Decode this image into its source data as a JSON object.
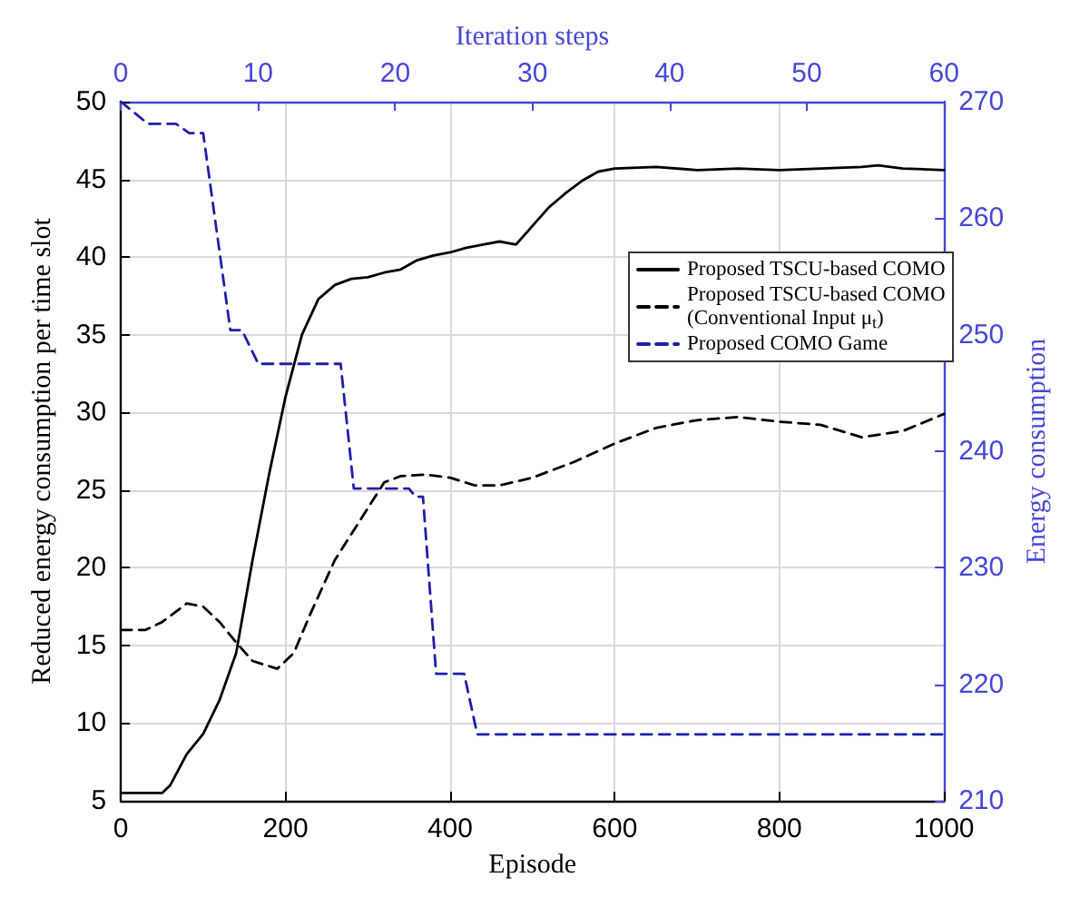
{
  "chart_data": {
    "type": "line",
    "xlabel": "Episode",
    "ylabel": "Reduced energy consumption per time slot",
    "y2label": "Energy consumption",
    "x2label": "Iteration steps",
    "xlim": [
      0,
      1000
    ],
    "xticks": [
      0,
      200,
      400,
      600,
      800,
      1000
    ],
    "ylim": [
      5,
      50
    ],
    "yticks": [
      5,
      10,
      15,
      20,
      25,
      30,
      35,
      40,
      45,
      50
    ],
    "x2lim": [
      0,
      60
    ],
    "x2ticks": [
      0,
      10,
      20,
      30,
      40,
      50,
      60
    ],
    "y2lim": [
      210,
      270
    ],
    "y2ticks": [
      210,
      220,
      230,
      240,
      250,
      260,
      270
    ],
    "grid": true,
    "legend": "right",
    "marker": "none",
    "series": [
      {
        "name": "Proposed TSCU-based COMO",
        "color": "#000000",
        "line_style": "solid",
        "x": [
          0,
          50,
          60,
          80,
          100,
          120,
          140,
          160,
          180,
          200,
          220,
          240,
          260,
          280,
          300,
          320,
          340,
          360,
          380,
          400,
          420,
          440,
          460,
          480,
          500,
          520,
          540,
          560,
          580,
          600,
          650,
          700,
          750,
          800,
          850,
          900,
          920,
          950,
          1000
        ],
        "values": [
          5.5,
          5.5,
          6,
          8,
          9.3,
          11.5,
          14.5,
          20.5,
          26,
          31,
          35,
          37.3,
          38.2,
          38.6,
          38.7,
          39,
          39.2,
          39.8,
          40.1,
          40.3,
          40.6,
          40.8,
          41,
          40.8,
          42,
          43.2,
          44.1,
          44.9,
          45.5,
          45.7,
          45.8,
          45.6,
          45.7,
          45.6,
          45.7,
          45.8,
          45.9,
          45.7,
          45.6
        ]
      },
      {
        "name": "Proposed TSCU-based COMO\n(Conventional Input μ$_{t}$)",
        "color": "#000000",
        "line_style": "dashed",
        "x": [
          0,
          30,
          50,
          80,
          100,
          120,
          140,
          160,
          190,
          210,
          230,
          260,
          290,
          320,
          340,
          370,
          400,
          430,
          460,
          500,
          550,
          600,
          650,
          700,
          750,
          800,
          850,
          900,
          950,
          1000
        ],
        "values": [
          16,
          16,
          16.5,
          17.7,
          17.5,
          16.5,
          15.2,
          14,
          13.5,
          14.5,
          17,
          20.5,
          23,
          25.5,
          25.9,
          26,
          25.8,
          25.3,
          25.3,
          25.8,
          26.8,
          28,
          29,
          29.5,
          29.7,
          29.4,
          29.2,
          28.4,
          28.8,
          29.9
        ]
      },
      {
        "name": "Proposed COMO Game",
        "color": "#1f1fa8",
        "line_style": "dashed",
        "axis": "y2",
        "x": [
          0,
          33,
          67,
          83,
          100,
          133,
          147,
          167,
          267,
          283,
          350,
          358,
          367,
          383,
          417,
          433,
          1000
        ],
        "values": [
          270,
          268.1,
          268.1,
          267.3,
          267.3,
          250.4,
          250.4,
          247.5,
          247.5,
          236.8,
          236.8,
          236.1,
          236.1,
          220.9,
          220.9,
          215.7,
          215.7
        ]
      }
    ]
  }
}
